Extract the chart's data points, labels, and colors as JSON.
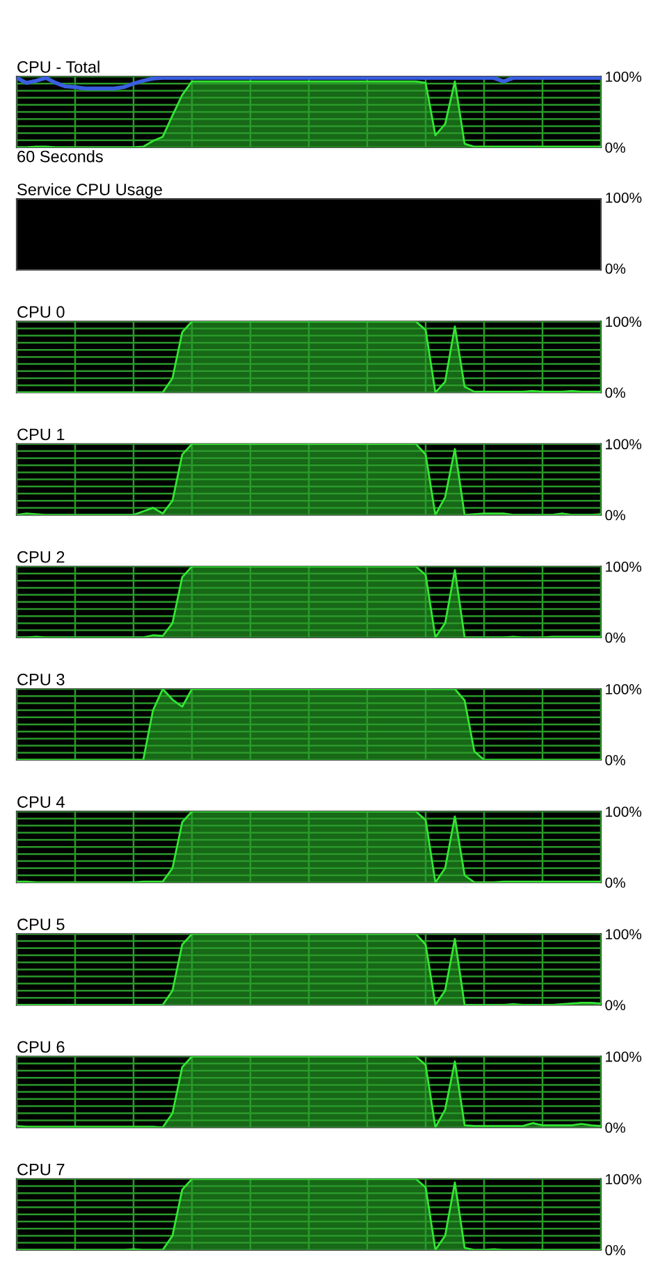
{
  "chart_data": [
    {
      "type": "area",
      "title": "CPU - Total",
      "annotations": [
        "60 Seconds"
      ],
      "ylim": [
        0,
        100
      ],
      "grid": true,
      "categories": [
        null,
        null,
        null,
        null,
        null,
        null,
        null,
        null,
        null,
        null,
        null,
        null,
        null,
        null,
        null,
        null,
        null,
        null,
        null,
        null,
        null,
        null,
        null,
        null,
        null,
        null,
        null,
        null,
        null,
        null,
        null,
        null,
        null,
        null,
        null,
        null,
        null,
        null,
        null,
        null,
        null,
        null,
        null,
        null,
        null,
        null,
        null,
        null,
        null,
        null,
        null,
        null,
        null,
        null,
        null,
        null,
        null,
        null,
        null,
        null,
        null
      ],
      "yticks": [
        {
          "value": 0,
          "label": "0%"
        },
        {
          "value": 10,
          "label": null
        },
        {
          "value": 20,
          "label": null
        },
        {
          "value": 30,
          "label": null
        },
        {
          "value": 40,
          "label": null
        },
        {
          "value": 50,
          "label": null
        },
        {
          "value": 60,
          "label": null
        },
        {
          "value": 70,
          "label": null
        },
        {
          "value": 80,
          "label": null
        },
        {
          "value": 90,
          "label": null
        },
        {
          "value": 100,
          "label": "100%"
        }
      ],
      "series": [
        {
          "color": "#33e633",
          "values": [
            0,
            0,
            1,
            1,
            0,
            0,
            0,
            0,
            0,
            0,
            0,
            0,
            0,
            1,
            9,
            15,
            45,
            74,
            93,
            93,
            93,
            93,
            93,
            93,
            93,
            93,
            93,
            93,
            93,
            93,
            93,
            93,
            93,
            93,
            93,
            93,
            93,
            93,
            93,
            93,
            93,
            93,
            91,
            17,
            33,
            93,
            5,
            1,
            1,
            1,
            1,
            1,
            1,
            1,
            1,
            1,
            1,
            1,
            1,
            1,
            1
          ]
        },
        {
          "type": "line",
          "color": "#3a5ee0",
          "values": [
            98,
            91,
            94,
            98,
            91,
            86,
            85,
            83,
            83,
            83,
            83,
            85,
            90,
            94,
            97,
            98,
            98,
            98,
            98,
            98,
            98,
            98,
            98,
            98,
            98,
            98,
            98,
            98,
            98,
            98,
            98,
            98,
            98,
            98,
            98,
            98,
            98,
            98,
            98,
            98,
            98,
            98,
            98,
            98,
            98,
            98,
            98,
            98,
            98,
            98,
            93,
            98,
            98,
            98,
            98,
            98,
            98,
            98,
            98,
            98,
            98
          ]
        }
      ]
    },
    {
      "type": "other",
      "title": "Service CPU Usage",
      "annotations": [
        "100%",
        "0%"
      ]
    },
    {
      "type": "area",
      "title": "CPU 0",
      "ylim": [
        0,
        100
      ],
      "grid": true,
      "categories": [
        null,
        null,
        null,
        null,
        null,
        null,
        null,
        null,
        null,
        null,
        null,
        null,
        null,
        null,
        null,
        null,
        null,
        null,
        null,
        null,
        null,
        null,
        null,
        null,
        null,
        null,
        null,
        null,
        null,
        null,
        null,
        null,
        null,
        null,
        null,
        null,
        null,
        null,
        null,
        null,
        null,
        null,
        null,
        null,
        null,
        null,
        null,
        null,
        null,
        null,
        null,
        null,
        null,
        null,
        null,
        null,
        null,
        null,
        null,
        null,
        null
      ],
      "yticks": [
        {
          "value": 0,
          "label": "0%"
        },
        {
          "value": 10,
          "label": null
        },
        {
          "value": 20,
          "label": null
        },
        {
          "value": 30,
          "label": null
        },
        {
          "value": 40,
          "label": null
        },
        {
          "value": 50,
          "label": null
        },
        {
          "value": 60,
          "label": null
        },
        {
          "value": 70,
          "label": null
        },
        {
          "value": 80,
          "label": null
        },
        {
          "value": 90,
          "label": null
        },
        {
          "value": 100,
          "label": "100%"
        }
      ],
      "series": [
        {
          "color": "#33e633",
          "values": [
            0,
            0,
            0,
            0,
            0,
            0,
            0,
            0,
            0,
            0,
            0,
            0,
            0,
            0,
            0,
            0,
            20,
            85,
            100,
            100,
            100,
            100,
            100,
            100,
            100,
            100,
            100,
            100,
            100,
            100,
            100,
            100,
            100,
            100,
            100,
            100,
            100,
            100,
            100,
            100,
            100,
            100,
            88,
            0,
            15,
            93,
            8,
            1,
            1,
            1,
            1,
            1,
            1,
            2,
            1,
            1,
            1,
            2,
            1,
            1,
            1
          ]
        }
      ]
    },
    {
      "type": "area",
      "title": "CPU 1",
      "ylim": [
        0,
        100
      ],
      "grid": true,
      "categories": [
        null,
        null,
        null,
        null,
        null,
        null,
        null,
        null,
        null,
        null,
        null,
        null,
        null,
        null,
        null,
        null,
        null,
        null,
        null,
        null,
        null,
        null,
        null,
        null,
        null,
        null,
        null,
        null,
        null,
        null,
        null,
        null,
        null,
        null,
        null,
        null,
        null,
        null,
        null,
        null,
        null,
        null,
        null,
        null,
        null,
        null,
        null,
        null,
        null,
        null,
        null,
        null,
        null,
        null,
        null,
        null,
        null,
        null,
        null,
        null,
        null
      ],
      "yticks": [
        {
          "value": 0,
          "label": "0%"
        },
        {
          "value": 10,
          "label": null
        },
        {
          "value": 20,
          "label": null
        },
        {
          "value": 30,
          "label": null
        },
        {
          "value": 40,
          "label": null
        },
        {
          "value": 50,
          "label": null
        },
        {
          "value": 60,
          "label": null
        },
        {
          "value": 70,
          "label": null
        },
        {
          "value": 80,
          "label": null
        },
        {
          "value": 90,
          "label": null
        },
        {
          "value": 100,
          "label": "100%"
        }
      ],
      "series": [
        {
          "color": "#33e633",
          "values": [
            0,
            2,
            1,
            0,
            0,
            0,
            0,
            0,
            0,
            0,
            0,
            0,
            0,
            5,
            10,
            2,
            20,
            85,
            100,
            100,
            100,
            100,
            100,
            100,
            100,
            100,
            100,
            100,
            100,
            100,
            100,
            100,
            100,
            100,
            100,
            100,
            100,
            100,
            100,
            100,
            100,
            100,
            85,
            0,
            25,
            93,
            0,
            1,
            2,
            2,
            2,
            0,
            0,
            0,
            0,
            0,
            2,
            0,
            0,
            0,
            1
          ]
        }
      ]
    },
    {
      "type": "area",
      "title": "CPU 2",
      "ylim": [
        0,
        100
      ],
      "grid": true,
      "categories": [
        null,
        null,
        null,
        null,
        null,
        null,
        null,
        null,
        null,
        null,
        null,
        null,
        null,
        null,
        null,
        null,
        null,
        null,
        null,
        null,
        null,
        null,
        null,
        null,
        null,
        null,
        null,
        null,
        null,
        null,
        null,
        null,
        null,
        null,
        null,
        null,
        null,
        null,
        null,
        null,
        null,
        null,
        null,
        null,
        null,
        null,
        null,
        null,
        null,
        null,
        null,
        null,
        null,
        null,
        null,
        null,
        null,
        null,
        null,
        null,
        null
      ],
      "yticks": [
        {
          "value": 0,
          "label": "0%"
        },
        {
          "value": 10,
          "label": null
        },
        {
          "value": 20,
          "label": null
        },
        {
          "value": 30,
          "label": null
        },
        {
          "value": 40,
          "label": null
        },
        {
          "value": 50,
          "label": null
        },
        {
          "value": 60,
          "label": null
        },
        {
          "value": 70,
          "label": null
        },
        {
          "value": 80,
          "label": null
        },
        {
          "value": 90,
          "label": null
        },
        {
          "value": 100,
          "label": "100%"
        }
      ],
      "series": [
        {
          "color": "#33e633",
          "values": [
            0,
            0,
            1,
            0,
            0,
            0,
            0,
            0,
            0,
            0,
            0,
            0,
            0,
            0,
            3,
            2,
            20,
            85,
            100,
            100,
            100,
            100,
            100,
            100,
            100,
            100,
            100,
            100,
            100,
            100,
            100,
            100,
            100,
            100,
            100,
            100,
            100,
            100,
            100,
            100,
            100,
            100,
            88,
            0,
            20,
            95,
            0,
            0,
            0,
            0,
            0,
            1,
            0,
            0,
            0,
            1,
            1,
            1,
            1,
            1,
            1
          ]
        }
      ]
    },
    {
      "type": "area",
      "title": "CPU 3",
      "ylim": [
        0,
        100
      ],
      "grid": true,
      "categories": [
        null,
        null,
        null,
        null,
        null,
        null,
        null,
        null,
        null,
        null,
        null,
        null,
        null,
        null,
        null,
        null,
        null,
        null,
        null,
        null,
        null,
        null,
        null,
        null,
        null,
        null,
        null,
        null,
        null,
        null,
        null,
        null,
        null,
        null,
        null,
        null,
        null,
        null,
        null,
        null,
        null,
        null,
        null,
        null,
        null,
        null,
        null,
        null,
        null,
        null,
        null,
        null,
        null,
        null,
        null,
        null,
        null,
        null,
        null,
        null,
        null
      ],
      "yticks": [
        {
          "value": 0,
          "label": "0%"
        },
        {
          "value": 10,
          "label": null
        },
        {
          "value": 20,
          "label": null
        },
        {
          "value": 30,
          "label": null
        },
        {
          "value": 40,
          "label": null
        },
        {
          "value": 50,
          "label": null
        },
        {
          "value": 60,
          "label": null
        },
        {
          "value": 70,
          "label": null
        },
        {
          "value": 80,
          "label": null
        },
        {
          "value": 90,
          "label": null
        },
        {
          "value": 100,
          "label": "100%"
        }
      ],
      "series": [
        {
          "color": "#33e633",
          "values": [
            0,
            0,
            0,
            0,
            0,
            0,
            0,
            0,
            0,
            0,
            0,
            0,
            0,
            0,
            70,
            100,
            85,
            75,
            100,
            100,
            100,
            100,
            100,
            100,
            100,
            100,
            100,
            100,
            100,
            100,
            100,
            100,
            100,
            100,
            100,
            100,
            100,
            100,
            100,
            100,
            100,
            100,
            100,
            100,
            100,
            100,
            84,
            12,
            0,
            0,
            0,
            0,
            0,
            0,
            0,
            0,
            0,
            0,
            0,
            0,
            0
          ]
        }
      ]
    },
    {
      "type": "area",
      "title": "CPU 4",
      "ylim": [
        0,
        100
      ],
      "grid": true,
      "categories": [
        null,
        null,
        null,
        null,
        null,
        null,
        null,
        null,
        null,
        null,
        null,
        null,
        null,
        null,
        null,
        null,
        null,
        null,
        null,
        null,
        null,
        null,
        null,
        null,
        null,
        null,
        null,
        null,
        null,
        null,
        null,
        null,
        null,
        null,
        null,
        null,
        null,
        null,
        null,
        null,
        null,
        null,
        null,
        null,
        null,
        null,
        null,
        null,
        null,
        null,
        null,
        null,
        null,
        null,
        null,
        null,
        null,
        null,
        null,
        null,
        null
      ],
      "yticks": [
        {
          "value": 0,
          "label": "0%"
        },
        {
          "value": 10,
          "label": null
        },
        {
          "value": 20,
          "label": null
        },
        {
          "value": 30,
          "label": null
        },
        {
          "value": 40,
          "label": null
        },
        {
          "value": 50,
          "label": null
        },
        {
          "value": 60,
          "label": null
        },
        {
          "value": 70,
          "label": null
        },
        {
          "value": 80,
          "label": null
        },
        {
          "value": 90,
          "label": null
        },
        {
          "value": 100,
          "label": "100%"
        }
      ],
      "series": [
        {
          "color": "#33e633",
          "values": [
            1,
            1,
            0,
            0,
            0,
            0,
            0,
            0,
            0,
            0,
            0,
            0,
            0,
            1,
            1,
            1,
            20,
            85,
            100,
            100,
            100,
            100,
            100,
            100,
            100,
            100,
            100,
            100,
            100,
            100,
            100,
            100,
            100,
            100,
            100,
            100,
            100,
            100,
            100,
            100,
            100,
            100,
            88,
            0,
            20,
            93,
            10,
            0,
            0,
            0,
            1,
            1,
            1,
            1,
            1,
            1,
            1,
            1,
            1,
            1,
            1
          ]
        }
      ]
    },
    {
      "type": "area",
      "title": "CPU 5",
      "ylim": [
        0,
        100
      ],
      "grid": true,
      "categories": [
        null,
        null,
        null,
        null,
        null,
        null,
        null,
        null,
        null,
        null,
        null,
        null,
        null,
        null,
        null,
        null,
        null,
        null,
        null,
        null,
        null,
        null,
        null,
        null,
        null,
        null,
        null,
        null,
        null,
        null,
        null,
        null,
        null,
        null,
        null,
        null,
        null,
        null,
        null,
        null,
        null,
        null,
        null,
        null,
        null,
        null,
        null,
        null,
        null,
        null,
        null,
        null,
        null,
        null,
        null,
        null,
        null,
        null,
        null,
        null,
        null
      ],
      "yticks": [
        {
          "value": 0,
          "label": "0%"
        },
        {
          "value": 10,
          "label": null
        },
        {
          "value": 20,
          "label": null
        },
        {
          "value": 30,
          "label": null
        },
        {
          "value": 40,
          "label": null
        },
        {
          "value": 50,
          "label": null
        },
        {
          "value": 60,
          "label": null
        },
        {
          "value": 70,
          "label": null
        },
        {
          "value": 80,
          "label": null
        },
        {
          "value": 90,
          "label": null
        },
        {
          "value": 100,
          "label": "100%"
        }
      ],
      "series": [
        {
          "color": "#33e633",
          "values": [
            0,
            0,
            0,
            0,
            0,
            0,
            0,
            0,
            0,
            0,
            0,
            0,
            0,
            0,
            0,
            0,
            20,
            85,
            100,
            100,
            100,
            100,
            100,
            100,
            100,
            100,
            100,
            100,
            100,
            100,
            100,
            100,
            100,
            100,
            100,
            100,
            100,
            100,
            100,
            100,
            100,
            100,
            85,
            0,
            20,
            93,
            0,
            0,
            0,
            0,
            0,
            1,
            0,
            0,
            0,
            0,
            1,
            2,
            3,
            3,
            2
          ]
        }
      ]
    },
    {
      "type": "area",
      "title": "CPU 6",
      "ylim": [
        0,
        100
      ],
      "grid": true,
      "categories": [
        null,
        null,
        null,
        null,
        null,
        null,
        null,
        null,
        null,
        null,
        null,
        null,
        null,
        null,
        null,
        null,
        null,
        null,
        null,
        null,
        null,
        null,
        null,
        null,
        null,
        null,
        null,
        null,
        null,
        null,
        null,
        null,
        null,
        null,
        null,
        null,
        null,
        null,
        null,
        null,
        null,
        null,
        null,
        null,
        null,
        null,
        null,
        null,
        null,
        null,
        null,
        null,
        null,
        null,
        null,
        null,
        null,
        null,
        null,
        null,
        null
      ],
      "yticks": [
        {
          "value": 0,
          "label": "0%"
        },
        {
          "value": 10,
          "label": null
        },
        {
          "value": 20,
          "label": null
        },
        {
          "value": 30,
          "label": null
        },
        {
          "value": 40,
          "label": null
        },
        {
          "value": 50,
          "label": null
        },
        {
          "value": 60,
          "label": null
        },
        {
          "value": 70,
          "label": null
        },
        {
          "value": 80,
          "label": null
        },
        {
          "value": 90,
          "label": null
        },
        {
          "value": 100,
          "label": "100%"
        }
      ],
      "series": [
        {
          "color": "#33e633",
          "values": [
            2,
            1,
            1,
            1,
            1,
            1,
            1,
            1,
            1,
            1,
            1,
            1,
            1,
            1,
            1,
            0,
            20,
            85,
            100,
            100,
            100,
            100,
            100,
            100,
            100,
            100,
            100,
            100,
            100,
            100,
            100,
            100,
            100,
            100,
            100,
            100,
            100,
            100,
            100,
            100,
            100,
            100,
            88,
            0,
            25,
            93,
            3,
            2,
            2,
            2,
            2,
            2,
            2,
            6,
            3,
            3,
            3,
            3,
            5,
            3,
            2
          ]
        }
      ]
    },
    {
      "type": "area",
      "title": "CPU 7",
      "ylim": [
        0,
        100
      ],
      "grid": true,
      "categories": [
        null,
        null,
        null,
        null,
        null,
        null,
        null,
        null,
        null,
        null,
        null,
        null,
        null,
        null,
        null,
        null,
        null,
        null,
        null,
        null,
        null,
        null,
        null,
        null,
        null,
        null,
        null,
        null,
        null,
        null,
        null,
        null,
        null,
        null,
        null,
        null,
        null,
        null,
        null,
        null,
        null,
        null,
        null,
        null,
        null,
        null,
        null,
        null,
        null,
        null,
        null,
        null,
        null,
        null,
        null,
        null,
        null,
        null,
        null,
        null,
        null
      ],
      "yticks": [
        {
          "value": 0,
          "label": "0%"
        },
        {
          "value": 10,
          "label": null
        },
        {
          "value": 20,
          "label": null
        },
        {
          "value": 30,
          "label": null
        },
        {
          "value": 40,
          "label": null
        },
        {
          "value": 50,
          "label": null
        },
        {
          "value": 60,
          "label": null
        },
        {
          "value": 70,
          "label": null
        },
        {
          "value": 80,
          "label": null
        },
        {
          "value": 90,
          "label": null
        },
        {
          "value": 100,
          "label": "100%"
        }
      ],
      "series": [
        {
          "color": "#33e633",
          "values": [
            0,
            0,
            0,
            0,
            0,
            0,
            0,
            0,
            0,
            0,
            0,
            0,
            1,
            0,
            0,
            0,
            20,
            85,
            100,
            100,
            100,
            100,
            100,
            100,
            100,
            100,
            100,
            100,
            100,
            100,
            100,
            100,
            100,
            100,
            100,
            100,
            100,
            100,
            100,
            100,
            100,
            100,
            88,
            0,
            20,
            95,
            3,
            0,
            0,
            1,
            0,
            0,
            0,
            0,
            0,
            0,
            0,
            0,
            0,
            0,
            0
          ]
        }
      ]
    }
  ]
}
